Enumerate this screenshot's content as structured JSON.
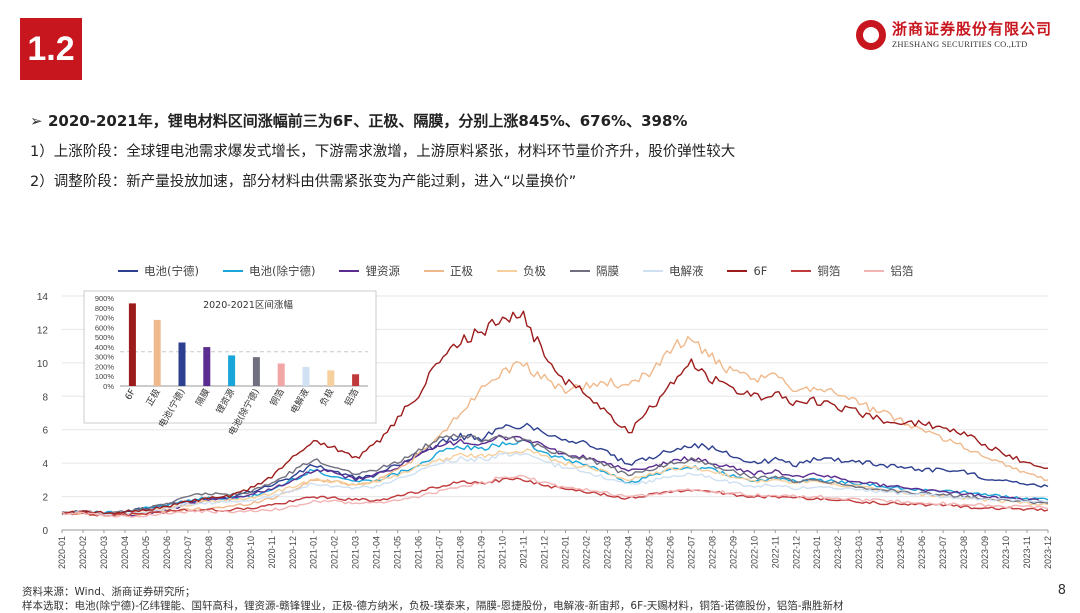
{
  "slide": {
    "section": "1.2",
    "logo_cn": "浙商证券股份有限公司",
    "logo_en": "ZHESHANG SECURITIES CO.,LTD",
    "headline": "2020-2021年，锂电材料区间涨幅前三为6F、正极、隔膜，分别上涨845%、676%、398%",
    "point1": "1）上涨阶段：全球锂电池需求爆发式增长，下游需求激增，上游原料紧张，材料环节量价齐升，股价弹性较大",
    "point2": "2）调整阶段：新产量投放加速，部分材料由供需紧张变为产能过剩，进入“以量换价”",
    "source": "资料来源：Wind、浙商证券研究所；",
    "sample": "样本选取：电池(除宁德)-亿纬锂能、国轩高科，锂资源-赣锋锂业，正极-德方纳米，负极-璞泰来，隔膜-恩捷股份，电解液-新宙邦，6F-天赐材料，铜箔-诺德股份，铝箔-鼎胜新材",
    "page_number": "8",
    "arrow_icon": "➢"
  },
  "colors": {
    "brand_red": "#c8161e"
  },
  "chart_data": [
    {
      "type": "line",
      "yrange": [
        0,
        14
      ],
      "yticks": [
        0,
        2,
        4,
        6,
        8,
        10,
        12,
        14
      ],
      "x": [
        "2020-01",
        "2020-02",
        "2020-03",
        "2020-04",
        "2020-05",
        "2020-06",
        "2020-07",
        "2020-08",
        "2020-09",
        "2020-10",
        "2020-11",
        "2020-12",
        "2021-01",
        "2021-02",
        "2021-03",
        "2021-04",
        "2021-05",
        "2021-06",
        "2021-07",
        "2021-08",
        "2021-09",
        "2021-10",
        "2021-11",
        "2021-12",
        "2022-01",
        "2022-02",
        "2022-03",
        "2022-04",
        "2022-05",
        "2022-06",
        "2022-07",
        "2022-08",
        "2022-09",
        "2022-10",
        "2022-11",
        "2022-12",
        "2023-01",
        "2023-02",
        "2023-03",
        "2023-04",
        "2023-05",
        "2023-06",
        "2023-07",
        "2023-08",
        "2023-09",
        "2023-10",
        "2023-11",
        "2023-12"
      ],
      "grid": true,
      "legend_position": "top",
      "series": [
        {
          "name": "电池(宁德)",
          "color": "#2d3f8f",
          "values": [
            1.0,
            1.1,
            1.0,
            1.1,
            1.3,
            1.5,
            1.7,
            1.9,
            2.0,
            2.3,
            2.7,
            3.2,
            3.9,
            3.5,
            3.1,
            3.3,
            3.9,
            4.6,
            5.2,
            5.6,
            5.5,
            6.1,
            6.3,
            5.9,
            5.4,
            5.2,
            4.6,
            3.9,
            4.3,
            4.8,
            5.1,
            4.9,
            4.4,
            4.0,
            4.2,
            3.9,
            4.3,
            4.2,
            4.1,
            3.9,
            3.8,
            3.6,
            3.6,
            3.5,
            3.1,
            3.0,
            2.7,
            2.6
          ]
        },
        {
          "name": "电池(除宁德)",
          "color": "#1aa5d8",
          "values": [
            1.0,
            1.1,
            1.0,
            1.1,
            1.3,
            1.5,
            1.8,
            1.9,
            1.9,
            2.0,
            2.4,
            3.0,
            3.6,
            3.2,
            2.9,
            3.0,
            3.4,
            3.9,
            4.6,
            5.0,
            4.8,
            5.2,
            5.3,
            4.6,
            4.2,
            3.9,
            3.4,
            2.8,
            3.2,
            3.6,
            3.8,
            3.6,
            3.2,
            2.9,
            3.1,
            2.9,
            3.0,
            2.9,
            2.8,
            2.6,
            2.5,
            2.4,
            2.3,
            2.3,
            2.1,
            2.0,
            1.9,
            1.8
          ]
        },
        {
          "name": "锂资源",
          "color": "#5b2d90",
          "values": [
            1.0,
            1.1,
            0.9,
            0.9,
            1.0,
            1.2,
            1.5,
            1.8,
            1.9,
            2.1,
            2.5,
            2.9,
            3.6,
            3.4,
            3.0,
            3.3,
            3.8,
            4.4,
            5.0,
            5.4,
            5.0,
            5.6,
            5.5,
            5.0,
            4.5,
            4.3,
            4.0,
            3.5,
            3.7,
            4.1,
            4.3,
            4.0,
            3.7,
            3.4,
            3.5,
            3.2,
            3.3,
            3.1,
            2.9,
            2.7,
            2.6,
            2.4,
            2.3,
            2.2,
            2.0,
            1.9,
            1.8,
            1.7
          ]
        },
        {
          "name": "正极",
          "color": "#f0b98c",
          "values": [
            1.0,
            1.0,
            0.9,
            0.9,
            1.0,
            1.1,
            1.2,
            1.3,
            1.4,
            1.6,
            1.9,
            2.4,
            3.0,
            2.9,
            2.7,
            3.0,
            3.6,
            4.5,
            5.6,
            7.0,
            8.5,
            9.6,
            9.8,
            9.0,
            8.4,
            8.6,
            8.9,
            8.5,
            9.4,
            10.9,
            11.4,
            10.3,
            9.3,
            9.0,
            9.2,
            8.4,
            8.6,
            8.2,
            7.6,
            7.0,
            6.6,
            6.0,
            5.5,
            5.0,
            4.4,
            3.9,
            3.4,
            3.0
          ]
        },
        {
          "name": "负极",
          "color": "#f5cf9c",
          "values": [
            1.0,
            1.1,
            1.0,
            1.0,
            1.1,
            1.3,
            1.5,
            1.7,
            1.8,
            1.9,
            2.2,
            2.6,
            3.0,
            2.9,
            2.7,
            2.9,
            3.3,
            3.8,
            4.2,
            4.5,
            4.4,
            4.7,
            4.8,
            4.4,
            4.0,
            3.8,
            3.4,
            3.0,
            3.3,
            3.6,
            3.8,
            3.5,
            3.2,
            2.9,
            3.0,
            2.8,
            2.9,
            2.7,
            2.6,
            2.4,
            2.3,
            2.1,
            2.0,
            1.9,
            1.8,
            1.7,
            1.6,
            1.5
          ]
        },
        {
          "name": "隔膜",
          "color": "#6f6f7f",
          "values": [
            1.0,
            1.1,
            1.0,
            1.1,
            1.3,
            1.6,
            2.0,
            2.2,
            2.1,
            2.3,
            2.8,
            3.5,
            4.2,
            3.8,
            3.4,
            3.6,
            4.1,
            4.8,
            5.4,
            5.7,
            5.3,
            5.6,
            5.4,
            4.9,
            4.5,
            4.3,
            3.8,
            3.3,
            3.6,
            4.0,
            4.2,
            3.9,
            3.5,
            3.1,
            3.2,
            2.9,
            3.0,
            2.8,
            2.6,
            2.4,
            2.3,
            2.2,
            2.1,
            2.0,
            1.9,
            1.8,
            1.7,
            1.6
          ]
        },
        {
          "name": "电解液",
          "color": "#cfe0f2",
          "values": [
            1.0,
            1.1,
            1.0,
            1.0,
            1.1,
            1.3,
            1.5,
            1.6,
            1.7,
            1.8,
            2.0,
            2.4,
            2.8,
            2.6,
            2.5,
            2.6,
            3.0,
            3.5,
            4.0,
            4.3,
            4.2,
            4.5,
            4.5,
            4.1,
            3.7,
            3.5,
            3.1,
            2.7,
            2.9,
            3.2,
            3.4,
            3.1,
            2.8,
            2.6,
            2.7,
            2.5,
            2.6,
            2.5,
            2.4,
            2.3,
            2.2,
            2.1,
            2.0,
            1.9,
            1.8,
            1.8,
            1.7,
            1.7
          ]
        },
        {
          "name": "6F",
          "color": "#9c1b1b",
          "values": [
            1.0,
            1.1,
            1.0,
            1.1,
            1.2,
            1.4,
            1.7,
            1.9,
            2.0,
            2.5,
            3.2,
            4.3,
            5.4,
            4.9,
            4.3,
            5.2,
            6.6,
            8.2,
            10.1,
            11.3,
            11.8,
            12.6,
            12.9,
            10.4,
            8.9,
            8.3,
            7.0,
            5.8,
            7.2,
            8.6,
            10.1,
            9.0,
            8.4,
            8.0,
            8.1,
            7.6,
            7.7,
            7.3,
            7.0,
            6.6,
            6.5,
            6.3,
            6.2,
            5.8,
            5.1,
            4.5,
            4.0,
            3.7
          ]
        },
        {
          "name": "铜箔",
          "color": "#c0393b",
          "values": [
            1.0,
            1.0,
            0.9,
            0.9,
            1.0,
            1.1,
            1.2,
            1.2,
            1.2,
            1.3,
            1.5,
            1.7,
            2.0,
            1.9,
            1.8,
            1.8,
            2.0,
            2.3,
            2.6,
            2.9,
            2.8,
            3.0,
            3.0,
            2.7,
            2.4,
            2.3,
            2.1,
            1.9,
            2.1,
            2.3,
            2.4,
            2.3,
            2.1,
            2.0,
            2.0,
            1.9,
            1.9,
            1.8,
            1.7,
            1.6,
            1.6,
            1.5,
            1.5,
            1.4,
            1.3,
            1.3,
            1.2,
            1.2
          ]
        },
        {
          "name": "铝箔",
          "color": "#f2b4b4",
          "values": [
            1.0,
            1.0,
            0.9,
            0.8,
            0.9,
            1.0,
            1.1,
            1.1,
            1.1,
            1.1,
            1.2,
            1.4,
            1.7,
            1.7,
            1.6,
            1.6,
            1.8,
            2.0,
            2.3,
            2.6,
            2.8,
            3.2,
            3.2,
            2.8,
            2.5,
            2.4,
            2.2,
            2.0,
            2.1,
            2.3,
            2.4,
            2.3,
            2.2,
            2.1,
            2.1,
            2.0,
            2.0,
            1.9,
            1.8,
            1.8,
            1.7,
            1.6,
            1.6,
            1.5,
            1.5,
            1.4,
            1.4,
            1.3
          ]
        }
      ]
    },
    {
      "type": "bar",
      "title": "2020-2021区间涨幅",
      "yrange_pct": [
        0,
        900
      ],
      "yticks": [
        "900%",
        "800%",
        "700%",
        "600%",
        "500%",
        "400%",
        "300%",
        "200%",
        "100%",
        "0%"
      ],
      "reference_line_pct": 350,
      "categories": [
        "6F",
        "正极",
        "电池(宁德)",
        "隔膜",
        "锂资源",
        "电池(除宁德)",
        "铜箔",
        "电解液",
        "负极",
        "铝箔"
      ],
      "values": [
        845,
        676,
        445,
        398,
        313,
        295,
        230,
        195,
        160,
        120
      ],
      "colors": [
        "#9c1b1b",
        "#f0b98c",
        "#2d3f8f",
        "#5b2d90",
        "#1aa5d8",
        "#6f6f7f",
        "#f2a5a5",
        "#cfe0f2",
        "#f5cf9c",
        "#c0393b"
      ]
    }
  ]
}
